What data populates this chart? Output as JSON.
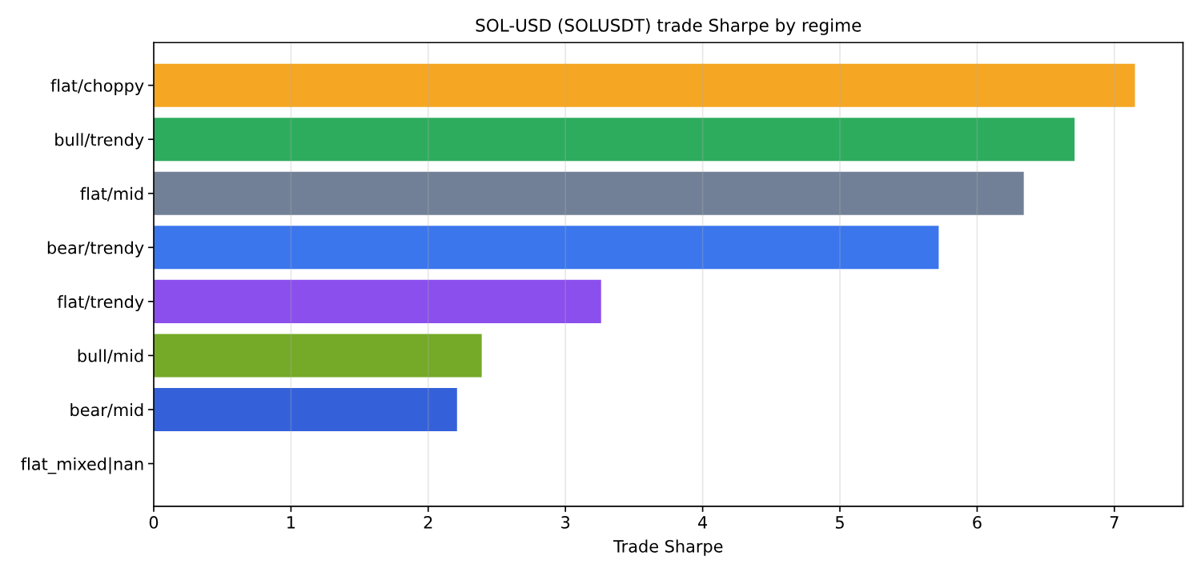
{
  "chart_data": {
    "type": "bar",
    "orientation": "horizontal",
    "title": "SOL-USD (SOLUSDT) trade Sharpe by regime",
    "xlabel": "Trade Sharpe",
    "categories": [
      "flat/choppy",
      "bull/trendy",
      "flat/mid",
      "bear/trendy",
      "flat/trendy",
      "bull/mid",
      "bear/mid",
      "flat_mixed|nan"
    ],
    "values": [
      7.15,
      6.71,
      6.34,
      5.72,
      3.26,
      2.39,
      2.21,
      null
    ],
    "colors": [
      "#f5a623",
      "#2eac5e",
      "#718096",
      "#3b76ed",
      "#8b4fed",
      "#74aa27",
      "#3461d9",
      null
    ],
    "xlim": [
      0,
      7.5
    ],
    "xticks": [
      0,
      1,
      2,
      3,
      4,
      5,
      6,
      7
    ],
    "grid": "x"
  }
}
